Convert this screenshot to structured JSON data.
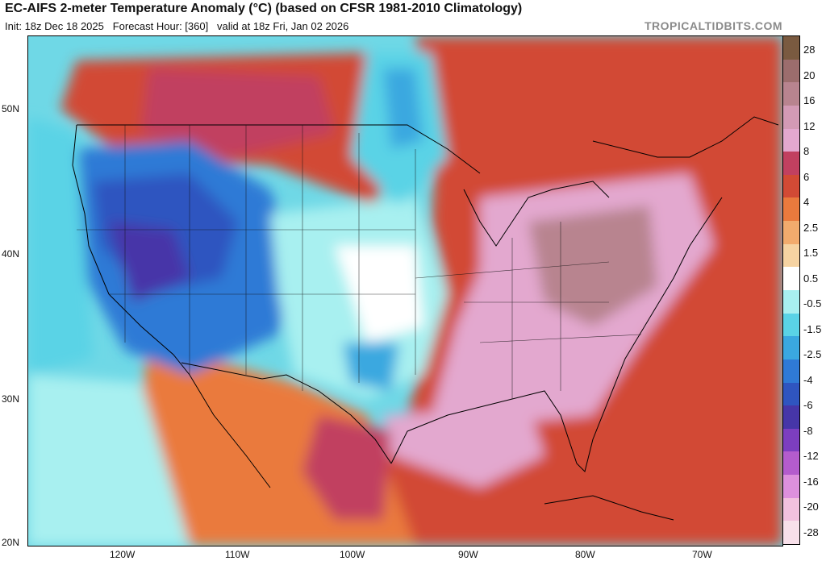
{
  "header": {
    "title": "EC-AIFS 2-meter Temperature Anomaly (°C) (based on CFSR 1981-2010 Climatology)",
    "init": "Init: 18z Dec 18 2025",
    "forecast_hour": "Forecast Hour: [360]",
    "valid": "valid at 18z Fri, Jan 02 2026",
    "brand": "TROPICALTIDBITS.COM"
  },
  "axes": {
    "lat_labels": [
      "50N",
      "40N",
      "30N",
      "20N"
    ],
    "lon_labels": [
      "120W",
      "110W",
      "100W",
      "90W",
      "80W",
      "70W"
    ]
  },
  "colorbar": {
    "labels": [
      "28",
      "20",
      "16",
      "12",
      "8",
      "6",
      "4",
      "2.5",
      "1.5",
      "0.5",
      "-0.5",
      "-1.5",
      "-2.5",
      "-4",
      "-6",
      "-8",
      "-12",
      "-16",
      "-20",
      "-28"
    ],
    "colors": [
      "#7a5a40",
      "#9c6d6d",
      "#b8848f",
      "#d39ab5",
      "#e3a8cf",
      "#c14060",
      "#d24a35",
      "#ea7a3d",
      "#f2ab6d",
      "#f6d3a2",
      "#ffffff",
      "#a8f0f0",
      "#5ad3e6",
      "#3aa8e0",
      "#2f7ad6",
      "#2f55c0",
      "#4636a8",
      "#7c3ec0",
      "#b45ccd",
      "#dd90dd",
      "#f2c1de",
      "#f8e0ea"
    ]
  },
  "legend_colors": {
    "warm_strong": "#e3a8cf",
    "warm": "#d24a35",
    "cool": "#5ad3e6",
    "cold": "#2f55c0"
  }
}
